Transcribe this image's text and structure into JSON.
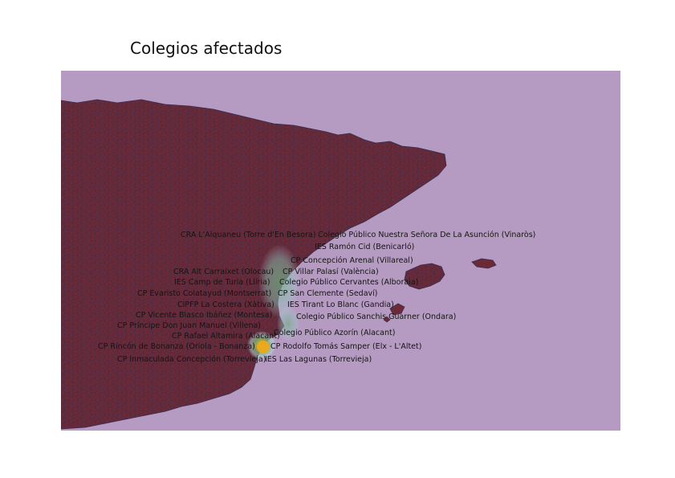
{
  "page": {
    "title": "Colegios afectados"
  },
  "map": {
    "colors": {
      "sea": "#b59bc1",
      "land": "#6b2a36",
      "border": "#3a2c4f",
      "heat_core": "#e0a21c",
      "heat_mid": "#7fbf7a",
      "heat_outer": "#b5dde0"
    },
    "schools": [
      {
        "id": "s1",
        "label": "CRA L'Alquaneu (Torre d'En Besora)"
      },
      {
        "id": "s2",
        "label": "Colegio Público Nuestra Señora De La Asunción (Vinaròs)"
      },
      {
        "id": "s3",
        "label": "IES Ramón Cid (Benicarló)"
      },
      {
        "id": "s4",
        "label": "CP Concepción Arenal (Villareal)"
      },
      {
        "id": "s5",
        "label": "CRA Alt Carraixet (Olocau)"
      },
      {
        "id": "s6",
        "label": "CP Villar Palasí (València)"
      },
      {
        "id": "s7",
        "label": "IES Camp de Turia (Llíria)"
      },
      {
        "id": "s8",
        "label": "Colegio Público Cervantes (Alboraia)"
      },
      {
        "id": "s9",
        "label": "CP Evaristo Colatayud (Montserrat)"
      },
      {
        "id": "s10",
        "label": "CP San Clemente (Sedaví)"
      },
      {
        "id": "s11",
        "label": "CIPFP La Costera (Xàtiva)"
      },
      {
        "id": "s12",
        "label": "IES Tirant Lo Blanc (Gandia)"
      },
      {
        "id": "s13",
        "label": "CP Vicente Blasco Ibáñez (Montesa)"
      },
      {
        "id": "s14",
        "label": "Colegio Público Sanchis Guarner (Ondara)"
      },
      {
        "id": "s15",
        "label": "CP Príncipe Don Juan Manuel (Villena)"
      },
      {
        "id": "s16",
        "label": "CP Rafael Altamira (Alacant)"
      },
      {
        "id": "s17",
        "label": "Colegio Público Azorín (Alacant)"
      },
      {
        "id": "s18",
        "label": "CP Rincón de Bonanza (Oriola - Bonanza)"
      },
      {
        "id": "s19",
        "label": "CP Rodolfo Tomás Samper (Elx - L'Altet)"
      },
      {
        "id": "s20",
        "label": "CP Inmaculada Concepción (Torrevieja)"
      },
      {
        "id": "s21",
        "label": "IES Las Lagunas (Torrevieja)"
      }
    ]
  }
}
